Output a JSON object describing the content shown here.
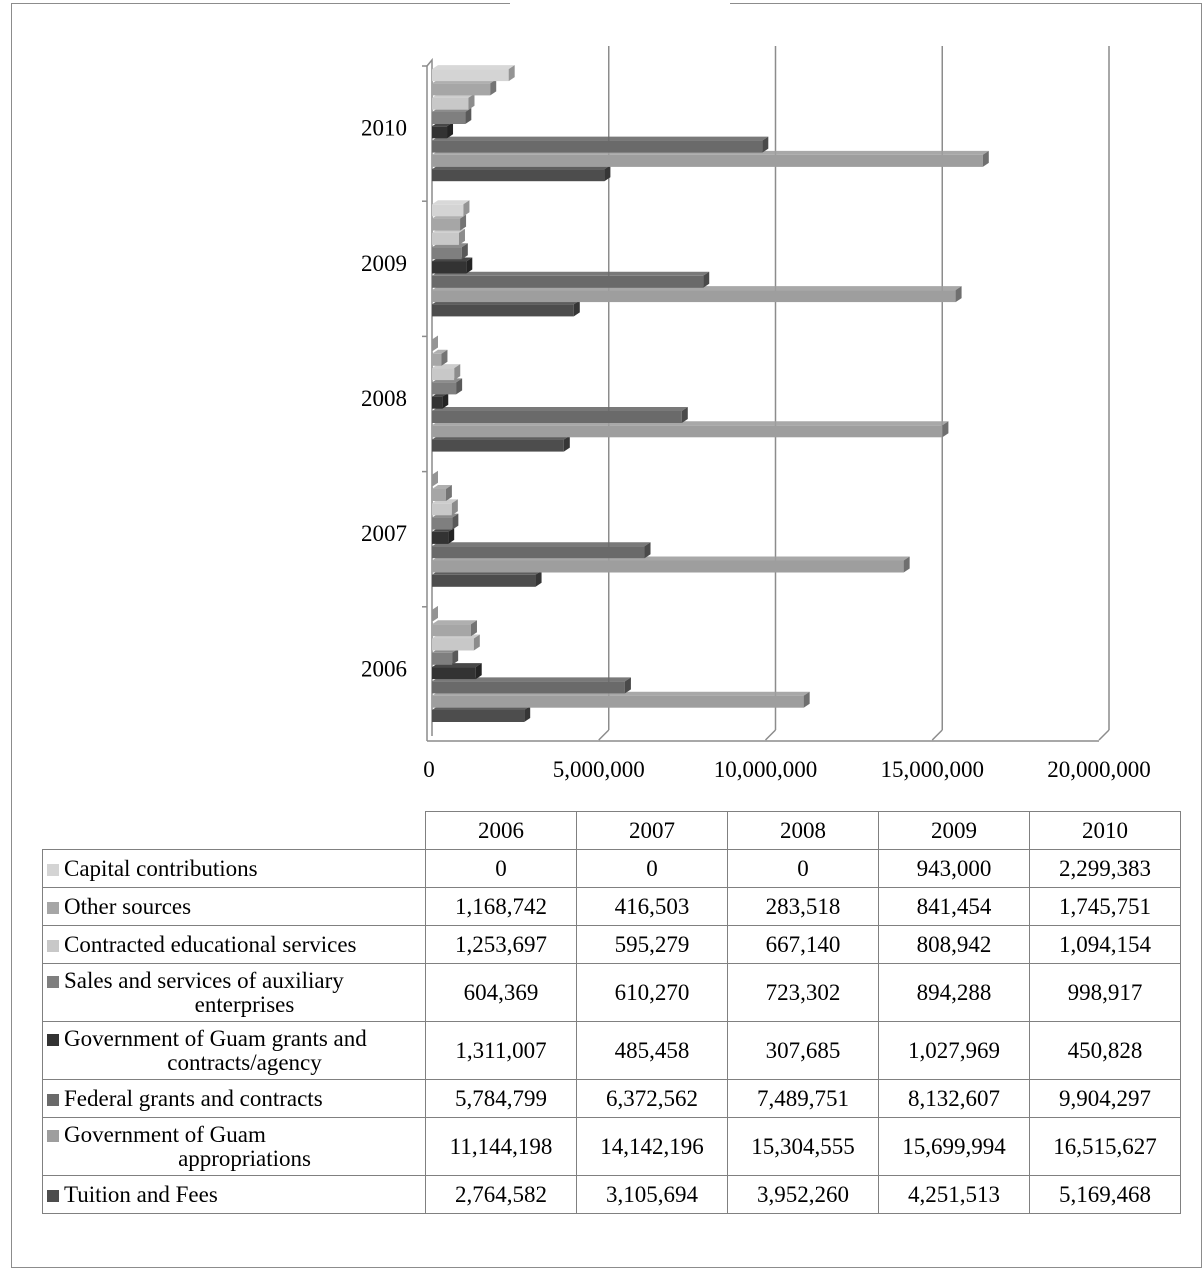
{
  "chart_data": {
    "type": "bar",
    "orientation": "horizontal",
    "categories": [
      "2006",
      "2007",
      "2008",
      "2009",
      "2010"
    ],
    "xlim": [
      0,
      20000000
    ],
    "x_ticks": [
      "0",
      "5,000,000",
      "10,000,000",
      "15,000,000",
      "20,000,000"
    ],
    "grid": true,
    "legend": "table-below",
    "series": [
      {
        "name": "Capital contributions",
        "color": "#d4d4d4",
        "values": [
          0,
          0,
          0,
          943000,
          2299383
        ],
        "display": [
          "0",
          "0",
          "0",
          "943,000",
          "2,299,383"
        ]
      },
      {
        "name": "Other sources",
        "color": "#a6a6a6",
        "values": [
          1168742,
          416503,
          283518,
          841454,
          1745751
        ],
        "display": [
          "1,168,742",
          "416,503",
          "283,518",
          "841,454",
          "1,745,751"
        ]
      },
      {
        "name": "Contracted educational services",
        "color": "#c8c8c8",
        "values": [
          1253697,
          595279,
          667140,
          808942,
          1094154
        ],
        "display": [
          "1,253,697",
          "595,279",
          "667,140",
          "808,942",
          "1,094,154"
        ]
      },
      {
        "name": "Sales and services of auxiliary enterprises",
        "color": "#7f7f7f",
        "values": [
          604369,
          610270,
          723302,
          894288,
          998917
        ],
        "display": [
          "604,369",
          "610,270",
          "723,302",
          "894,288",
          "998,917"
        ]
      },
      {
        "name": "Government of Guam grants and contracts/agency",
        "color": "#333333",
        "values": [
          1311007,
          485458,
          307685,
          1027969,
          450828
        ],
        "display": [
          "1,311,007",
          "485,458",
          "307,685",
          "1,027,969",
          "450,828"
        ]
      },
      {
        "name": "Federal grants and contracts",
        "color": "#6a6a6a",
        "values": [
          5784799,
          6372562,
          7489751,
          8132607,
          9904297
        ],
        "display": [
          "5,784,799",
          "6,372,562",
          "7,489,751",
          "8,132,607",
          "9,904,297"
        ]
      },
      {
        "name": "Government of Guam appropriations",
        "color": "#9e9e9e",
        "values": [
          11144198,
          14142196,
          15304555,
          15699994,
          16515627
        ],
        "display": [
          "11,144,198",
          "14,142,196",
          "15,304,555",
          "15,699,994",
          "16,515,627"
        ]
      },
      {
        "name": "Tuition and Fees",
        "color": "#4d4d4d",
        "values": [
          2764582,
          3105694,
          3952260,
          4251513,
          5169468
        ],
        "display": [
          "2,764,582",
          "3,105,694",
          "3,952,260",
          "4,251,513",
          "5,169,468"
        ]
      }
    ]
  }
}
